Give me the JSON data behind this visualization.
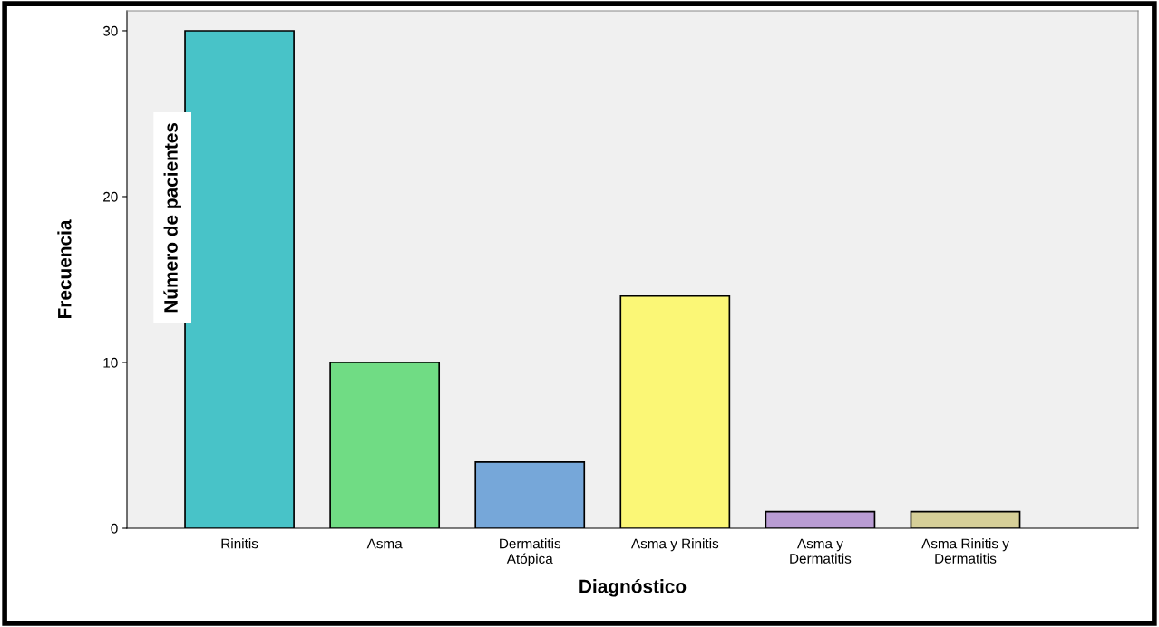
{
  "chart_data": {
    "type": "bar",
    "xlabel": "Diagnóstico",
    "ylabel": "Frecuencia",
    "categories": [
      "Rinitis",
      "Asma",
      "Dermatitis\nAtópica",
      "Asma y Rinitis",
      "Asma y\nDermatitis",
      "Asma Rinitis y\nDermatitis"
    ],
    "values": [
      30,
      10,
      4,
      14,
      1,
      1
    ],
    "colors": [
      "#48c3c8",
      "#70dc84",
      "#76a7d9",
      "#fbf776",
      "#b99cd3",
      "#d6cf98"
    ],
    "ylim": [
      0,
      31.2
    ],
    "yticks": [
      0,
      10,
      20,
      30
    ],
    "grid": false,
    "annotations": [
      "Número de pacientes"
    ]
  }
}
